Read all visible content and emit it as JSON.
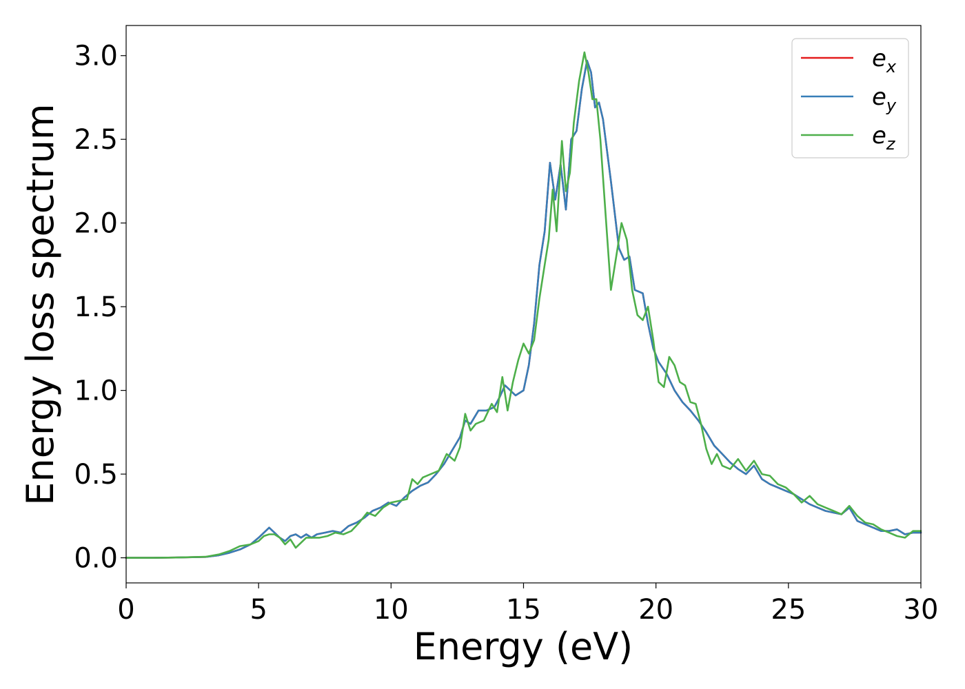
{
  "chart_data": {
    "type": "line",
    "xlabel": "Energy (eV)",
    "ylabel": "Energy loss spectrum",
    "xlim": [
      0,
      30
    ],
    "ylim": [
      -0.15,
      3.18
    ],
    "xticks": [
      "0",
      "5",
      "10",
      "15",
      "20",
      "25",
      "30"
    ],
    "yticks": [
      "0.0",
      "0.5",
      "1.0",
      "1.5",
      "2.0",
      "2.5",
      "3.0"
    ],
    "grid": false,
    "legend_position": "top-right",
    "series": [
      {
        "name": "e_x",
        "label_base": "e",
        "label_sub": "x",
        "color": "#e41a1c",
        "x": [
          0,
          1,
          2,
          3,
          3.5,
          3.9,
          4.3,
          4.7,
          5.0,
          5.2,
          5.4,
          5.6,
          5.8,
          6.0,
          6.2,
          6.4,
          6.6,
          6.8,
          7.0,
          7.2,
          7.5,
          7.8,
          8.1,
          8.4,
          8.7,
          9.0,
          9.3,
          9.6,
          9.9,
          10.2,
          10.5,
          10.8,
          11.1,
          11.4,
          11.7,
          12.0,
          12.3,
          12.6,
          12.8,
          13.0,
          13.3,
          13.6,
          13.9,
          14.1,
          14.3,
          14.5,
          14.7,
          15.0,
          15.2,
          15.4,
          15.6,
          15.8,
          16.0,
          16.2,
          16.4,
          16.6,
          16.8,
          17.0,
          17.2,
          17.4,
          17.55,
          17.7,
          17.85,
          18.0,
          18.3,
          18.6,
          18.8,
          19.0,
          19.2,
          19.5,
          19.7,
          19.9,
          20.1,
          20.4,
          20.7,
          21.0,
          21.3,
          21.6,
          21.9,
          22.2,
          22.5,
          22.8,
          23.1,
          23.4,
          23.7,
          24.0,
          24.3,
          24.6,
          24.9,
          25.2,
          25.5,
          25.8,
          26.1,
          26.4,
          26.7,
          27.0,
          27.3,
          27.6,
          27.9,
          28.2,
          28.5,
          28.8,
          29.1,
          29.4,
          29.7,
          30.0
        ],
        "y": [
          0,
          0,
          0.002,
          0.005,
          0.015,
          0.03,
          0.05,
          0.08,
          0.12,
          0.15,
          0.18,
          0.15,
          0.12,
          0.1,
          0.13,
          0.14,
          0.12,
          0.14,
          0.12,
          0.14,
          0.15,
          0.16,
          0.15,
          0.19,
          0.21,
          0.24,
          0.28,
          0.3,
          0.33,
          0.31,
          0.36,
          0.4,
          0.43,
          0.45,
          0.5,
          0.56,
          0.64,
          0.72,
          0.82,
          0.8,
          0.88,
          0.88,
          0.9,
          0.96,
          1.03,
          1.0,
          0.97,
          1.0,
          1.15,
          1.4,
          1.75,
          1.95,
          2.36,
          2.14,
          2.35,
          2.08,
          2.5,
          2.55,
          2.8,
          2.97,
          2.9,
          2.69,
          2.72,
          2.62,
          2.25,
          1.85,
          1.78,
          1.8,
          1.6,
          1.58,
          1.4,
          1.25,
          1.17,
          1.1,
          1.0,
          0.93,
          0.88,
          0.82,
          0.75,
          0.67,
          0.62,
          0.57,
          0.53,
          0.5,
          0.55,
          0.47,
          0.44,
          0.42,
          0.4,
          0.38,
          0.35,
          0.32,
          0.3,
          0.28,
          0.27,
          0.26,
          0.3,
          0.22,
          0.2,
          0.18,
          0.16,
          0.16,
          0.17,
          0.14,
          0.15,
          0.15
        ]
      },
      {
        "name": "e_y",
        "label_base": "e",
        "label_sub": "y",
        "color": "#377eb8",
        "x": [
          0,
          1,
          2,
          3,
          3.5,
          3.9,
          4.3,
          4.7,
          5.0,
          5.2,
          5.4,
          5.6,
          5.8,
          6.0,
          6.2,
          6.4,
          6.6,
          6.8,
          7.0,
          7.2,
          7.5,
          7.8,
          8.1,
          8.4,
          8.7,
          9.0,
          9.3,
          9.6,
          9.9,
          10.2,
          10.5,
          10.8,
          11.1,
          11.4,
          11.7,
          12.0,
          12.3,
          12.6,
          12.8,
          13.0,
          13.3,
          13.6,
          13.9,
          14.1,
          14.3,
          14.5,
          14.7,
          15.0,
          15.2,
          15.4,
          15.6,
          15.8,
          16.0,
          16.2,
          16.4,
          16.6,
          16.8,
          17.0,
          17.2,
          17.4,
          17.55,
          17.7,
          17.85,
          18.0,
          18.3,
          18.6,
          18.8,
          19.0,
          19.2,
          19.5,
          19.7,
          19.9,
          20.1,
          20.4,
          20.7,
          21.0,
          21.3,
          21.6,
          21.9,
          22.2,
          22.5,
          22.8,
          23.1,
          23.4,
          23.7,
          24.0,
          24.3,
          24.6,
          24.9,
          25.2,
          25.5,
          25.8,
          26.1,
          26.4,
          26.7,
          27.0,
          27.3,
          27.6,
          27.9,
          28.2,
          28.5,
          28.8,
          29.1,
          29.4,
          29.7,
          30.0
        ],
        "y": [
          0,
          0,
          0.002,
          0.005,
          0.015,
          0.03,
          0.05,
          0.08,
          0.12,
          0.15,
          0.18,
          0.15,
          0.12,
          0.1,
          0.13,
          0.14,
          0.12,
          0.14,
          0.12,
          0.14,
          0.15,
          0.16,
          0.15,
          0.19,
          0.21,
          0.24,
          0.28,
          0.3,
          0.33,
          0.31,
          0.36,
          0.4,
          0.43,
          0.45,
          0.5,
          0.56,
          0.64,
          0.72,
          0.82,
          0.8,
          0.88,
          0.88,
          0.9,
          0.96,
          1.03,
          1.0,
          0.97,
          1.0,
          1.15,
          1.4,
          1.75,
          1.95,
          2.36,
          2.14,
          2.35,
          2.08,
          2.5,
          2.55,
          2.8,
          2.97,
          2.9,
          2.69,
          2.72,
          2.62,
          2.25,
          1.85,
          1.78,
          1.8,
          1.6,
          1.58,
          1.4,
          1.25,
          1.17,
          1.1,
          1.0,
          0.93,
          0.88,
          0.82,
          0.75,
          0.67,
          0.62,
          0.57,
          0.53,
          0.5,
          0.55,
          0.47,
          0.44,
          0.42,
          0.4,
          0.38,
          0.35,
          0.32,
          0.3,
          0.28,
          0.27,
          0.26,
          0.3,
          0.22,
          0.2,
          0.18,
          0.16,
          0.16,
          0.17,
          0.14,
          0.15,
          0.15
        ]
      },
      {
        "name": "e_z",
        "label_base": "e",
        "label_sub": "z",
        "color": "#4daf4a",
        "x": [
          0,
          1,
          2,
          3,
          3.5,
          3.9,
          4.3,
          4.7,
          5.0,
          5.2,
          5.4,
          5.6,
          5.8,
          6.0,
          6.2,
          6.4,
          6.6,
          6.8,
          7.0,
          7.3,
          7.6,
          7.9,
          8.2,
          8.5,
          8.8,
          9.1,
          9.4,
          9.7,
          10.0,
          10.3,
          10.6,
          10.8,
          11.0,
          11.2,
          11.5,
          11.8,
          12.1,
          12.4,
          12.6,
          12.8,
          13.0,
          13.2,
          13.5,
          13.8,
          14.0,
          14.2,
          14.4,
          14.6,
          14.8,
          15.0,
          15.2,
          15.4,
          15.6,
          15.8,
          15.95,
          16.1,
          16.25,
          16.45,
          16.6,
          16.75,
          16.9,
          17.1,
          17.3,
          17.45,
          17.6,
          17.75,
          17.9,
          18.1,
          18.3,
          18.5,
          18.7,
          18.9,
          19.1,
          19.3,
          19.5,
          19.7,
          19.9,
          20.1,
          20.3,
          20.5,
          20.7,
          20.9,
          21.1,
          21.3,
          21.5,
          21.7,
          21.9,
          22.1,
          22.3,
          22.5,
          22.8,
          23.1,
          23.4,
          23.7,
          24.0,
          24.3,
          24.6,
          24.9,
          25.2,
          25.5,
          25.8,
          26.1,
          26.4,
          26.7,
          27.0,
          27.3,
          27.6,
          27.9,
          28.2,
          28.5,
          28.8,
          29.1,
          29.4,
          29.7,
          30.0
        ],
        "y": [
          0,
          0,
          0.002,
          0.006,
          0.02,
          0.04,
          0.07,
          0.08,
          0.1,
          0.13,
          0.14,
          0.14,
          0.12,
          0.08,
          0.11,
          0.06,
          0.09,
          0.12,
          0.12,
          0.12,
          0.13,
          0.15,
          0.14,
          0.16,
          0.21,
          0.27,
          0.25,
          0.3,
          0.33,
          0.34,
          0.35,
          0.47,
          0.44,
          0.48,
          0.5,
          0.52,
          0.62,
          0.58,
          0.66,
          0.86,
          0.76,
          0.8,
          0.82,
          0.92,
          0.87,
          1.08,
          0.88,
          1.05,
          1.18,
          1.28,
          1.22,
          1.3,
          1.55,
          1.75,
          1.9,
          2.2,
          1.95,
          2.49,
          2.19,
          2.3,
          2.6,
          2.85,
          3.02,
          2.9,
          2.74,
          2.74,
          2.5,
          2.05,
          1.6,
          1.8,
          2.0,
          1.9,
          1.6,
          1.45,
          1.42,
          1.5,
          1.3,
          1.05,
          1.02,
          1.2,
          1.15,
          1.05,
          1.03,
          0.93,
          0.92,
          0.8,
          0.65,
          0.56,
          0.62,
          0.55,
          0.53,
          0.59,
          0.52,
          0.58,
          0.5,
          0.49,
          0.44,
          0.42,
          0.38,
          0.33,
          0.37,
          0.32,
          0.3,
          0.28,
          0.26,
          0.31,
          0.25,
          0.21,
          0.2,
          0.17,
          0.15,
          0.13,
          0.12,
          0.16,
          0.16
        ]
      }
    ]
  }
}
